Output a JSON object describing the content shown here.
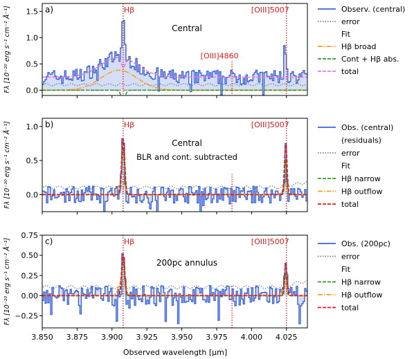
{
  "figure": {
    "xlabel": "Observed wavelength [μm]",
    "ylabel": "Fλ [10⁻²⁰ erg s⁻¹ cm⁻² Å⁻¹]",
    "xticks": [
      "3.850",
      "3.875",
      "3.900",
      "3.925",
      "3.950",
      "3.975",
      "4.000",
      "4.025"
    ],
    "xlim": [
      3.85,
      4.04
    ],
    "colors": {
      "observed": "#3b63d6",
      "error": "#7f7f7f",
      "broad": "#ff9f1c",
      "cont_abs": "#2e9a2e",
      "narrow": "#2e9a2e",
      "outflow": "#ff9f1c",
      "total_a": "#e377e3",
      "total_bc": "#e31a1c",
      "line_marker": "#e31a1c",
      "fill": "#a9bdf0"
    }
  },
  "chart_data": [
    {
      "type": "line",
      "panel_label": "a)",
      "annotation": "Central",
      "ylim": [
        -0.1,
        1.65
      ],
      "yticks": [
        "0.0",
        "0.5",
        "1.0",
        "1.5"
      ],
      "line_markers": [
        {
          "label": "Hβ",
          "x": 3.908
        },
        {
          "label": "[OIII]4860",
          "x": 3.986
        },
        {
          "label": "[OIII]5007",
          "x": 4.025
        }
      ],
      "legend": [
        "Observ. (central)",
        "error",
        "Fit",
        "Hβ broad",
        "Cont + Hβ abs.",
        "total"
      ],
      "features": {
        "continuum": 0.25,
        "peak_x": 3.908,
        "peak_y": 1.3,
        "oiii_x": 4.024,
        "oiii_y": 0.85,
        "broad_center": 3.905,
        "broad_amp": 0.38,
        "broad_sigma": 0.013,
        "abs_depth": 0.2,
        "error_level": 0.1
      }
    },
    {
      "type": "line",
      "panel_label": "b)",
      "annotation": "Central",
      "annotation2": "BLR and cont. subtracted",
      "ylim": [
        -0.25,
        1.12
      ],
      "yticks": [
        "0.0",
        "0.5",
        "1.0"
      ],
      "line_markers": [
        {
          "label": "Hβ",
          "x": 3.908
        },
        {
          "label": "",
          "x": 3.986
        },
        {
          "label": "[OIII]5007",
          "x": 4.025
        }
      ],
      "legend": [
        "Obs. (central)",
        "(residuals)",
        "error",
        "Fit",
        "Hβ narrow",
        "Hβ outflow",
        "total"
      ],
      "features": {
        "continuum": 0.0,
        "peak_x": 3.908,
        "peak_y": 0.82,
        "oiii_x": 4.0245,
        "oiii_y": 0.75,
        "error_level": 0.1
      }
    },
    {
      "type": "line",
      "panel_label": "c)",
      "annotation": "200pc annulus",
      "ylim": [
        -0.4,
        0.75
      ],
      "yticks": [
        "−0.25",
        "0.00",
        "0.25",
        "0.50",
        "0.75"
      ],
      "line_markers": [
        {
          "label": "Hβ",
          "x": 3.908
        },
        {
          "label": "",
          "x": 3.986
        },
        {
          "label": "[OIII]5007",
          "x": 4.025
        }
      ],
      "legend": [
        "Obs. (200pc)",
        "error",
        "Fit",
        "Hβ narrow",
        "Hβ outflow",
        "total"
      ],
      "features": {
        "continuum": 0.0,
        "peak_x": 3.908,
        "peak_y": 0.52,
        "oiii_x": 4.0245,
        "oiii_y": 0.4,
        "error_level": 0.1
      }
    }
  ]
}
